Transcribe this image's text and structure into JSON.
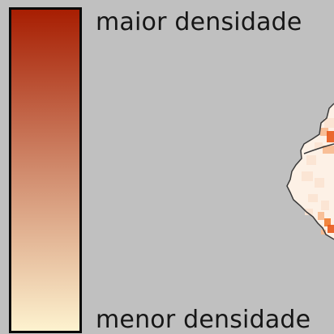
{
  "legend": {
    "max_label": "maior densidade",
    "min_label": "menor densidade",
    "color_high": "#a71e02",
    "color_mid": "#d08a6c",
    "color_low": "#fdf2cf"
  },
  "map": {
    "background_color": "#c0c0c0",
    "outline_color": "#3a3a3a",
    "fill_colors": [
      "#fdf1e6",
      "#fbe3d2",
      "#f7b98e",
      "#f07a2e",
      "#e8591a"
    ]
  }
}
